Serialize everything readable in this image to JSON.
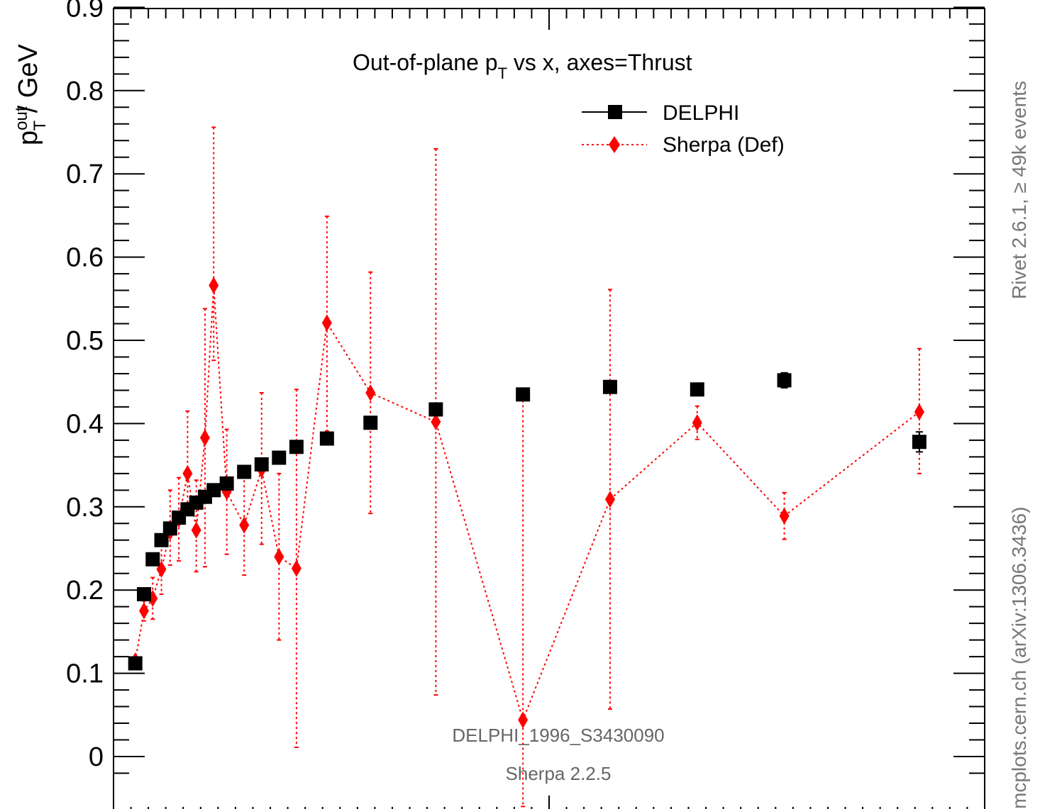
{
  "chart_data": {
    "type": "scatter",
    "title": "Out-of-plane p_T vs x, axes=Thrust",
    "ylabel": "p_T^out / GeV",
    "xlim": [
      0,
      1
    ],
    "ylim": [
      -0.06,
      0.9
    ],
    "yticks": [
      0,
      0.1,
      0.2,
      0.3,
      0.4,
      0.5,
      0.6,
      0.7,
      0.8,
      0.9
    ],
    "ytick_labels": [
      "0",
      "0.1",
      "0.2",
      "0.3",
      "0.4",
      "0.5",
      "0.6",
      "0.7",
      "0.8",
      "0.9"
    ],
    "legend_position": "top-right",
    "series": [
      {
        "name": "DELPHI",
        "color": "#000000",
        "marker": "square",
        "line": "none",
        "x": [
          0.025,
          0.035,
          0.045,
          0.055,
          0.065,
          0.075,
          0.085,
          0.095,
          0.105,
          0.115,
          0.13,
          0.15,
          0.17,
          0.19,
          0.21,
          0.245,
          0.295,
          0.37,
          0.47,
          0.57,
          0.67,
          0.77,
          0.925
        ],
        "y": [
          0.112,
          0.195,
          0.237,
          0.26,
          0.274,
          0.287,
          0.297,
          0.305,
          0.312,
          0.32,
          0.328,
          0.342,
          0.351,
          0.359,
          0.372,
          0.382,
          0.401,
          0.417,
          0.435,
          0.444,
          0.441,
          0.452,
          0.378
        ],
        "err": [
          0.005,
          0.004,
          0.004,
          0.004,
          0.004,
          0.004,
          0.004,
          0.004,
          0.004,
          0.004,
          0.004,
          0.004,
          0.004,
          0.004,
          0.004,
          0.004,
          0.004,
          0.004,
          0.004,
          0.004,
          0.004,
          0.009,
          0.012
        ]
      },
      {
        "name": "Sherpa (Def)",
        "color": "#ff0000",
        "marker": "diamond",
        "line": "dotted",
        "x": [
          0.025,
          0.035,
          0.045,
          0.055,
          0.065,
          0.075,
          0.085,
          0.095,
          0.105,
          0.115,
          0.13,
          0.15,
          0.17,
          0.19,
          0.21,
          0.245,
          0.295,
          0.37,
          0.47,
          0.57,
          0.67,
          0.77,
          0.925
        ],
        "y": [
          0.115,
          0.175,
          0.19,
          0.225,
          0.27,
          0.285,
          0.34,
          0.272,
          0.383,
          0.566,
          0.318,
          0.278,
          0.345,
          0.24,
          0.226,
          0.521,
          0.437,
          0.402,
          0.044,
          0.309,
          0.401,
          0.289,
          0.414
        ],
        "err_low": [
          0.005,
          0.012,
          0.025,
          0.03,
          0.04,
          0.05,
          0.05,
          0.05,
          0.155,
          0.09,
          0.075,
          0.06,
          0.09,
          0.1,
          0.215,
          0.13,
          0.145,
          0.328,
          0.104,
          0.252,
          0.02,
          0.028,
          0.074
        ],
        "err_high": [
          0.005,
          0.012,
          0.025,
          0.03,
          0.05,
          0.05,
          0.075,
          0.06,
          0.155,
          0.19,
          0.075,
          0.06,
          0.092,
          0.1,
          0.215,
          0.128,
          0.145,
          0.328,
          0.39,
          0.252,
          0.02,
          0.028,
          0.076
        ]
      }
    ]
  },
  "labels": {
    "title": "Out-of-plane p",
    "title_sub": "T",
    "title_rest": " vs x, axes=Thrust",
    "ylabel_main": "p",
    "ylabel_sup": "out",
    "ylabel_sub": "T",
    "ylabel_rest": " / GeV",
    "legend_delphi": "DELPHI",
    "legend_sherpa": "Sherpa (Def)",
    "side_top": "Rivet 2.6.1, ≥ 49k events",
    "side_bottom": "mcplots.cern.ch (arXiv:1306.3436)",
    "footer_analysis": "DELPHI_1996_S3430090",
    "footer_generator": "Sherpa 2.2.5"
  }
}
